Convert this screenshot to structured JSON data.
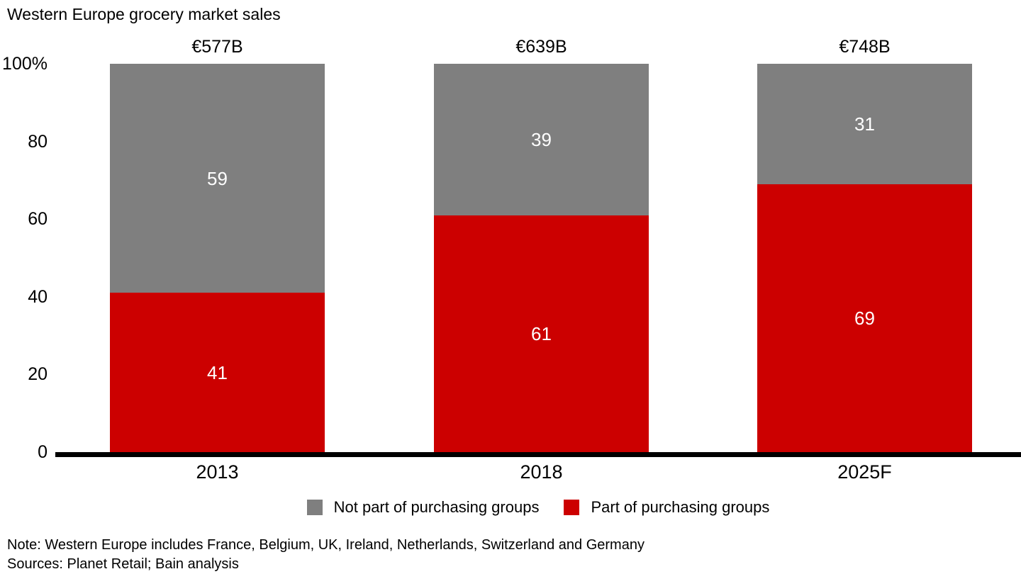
{
  "title": "Western Europe grocery market sales",
  "chart_data": {
    "type": "bar",
    "stacked": true,
    "orientation": "vertical",
    "categories": [
      "2013",
      "2018",
      "2025F"
    ],
    "series": [
      {
        "name": "Not part of purchasing groups",
        "color": "#7F7F7F",
        "values": [
          59,
          39,
          31
        ]
      },
      {
        "name": "Part of purchasing groups",
        "color": "#CC0000",
        "values": [
          41,
          61,
          69
        ]
      }
    ],
    "totals": [
      "€577B",
      "€639B",
      "€748B"
    ],
    "y_axis": {
      "ticks": [
        "100%",
        "80",
        "60",
        "40",
        "20",
        "0"
      ],
      "min": 0,
      "max": 100
    },
    "unit": "%",
    "grid": false,
    "legend_position": "bottom",
    "axis_color": "#000000",
    "label_color": "#FFFFFF"
  },
  "footnotes": {
    "note": "Note: Western Europe includes France, Belgium, UK, Ireland, Netherlands, Switzerland and Germany",
    "sources": "Sources: Planet Retail; Bain analysis"
  }
}
